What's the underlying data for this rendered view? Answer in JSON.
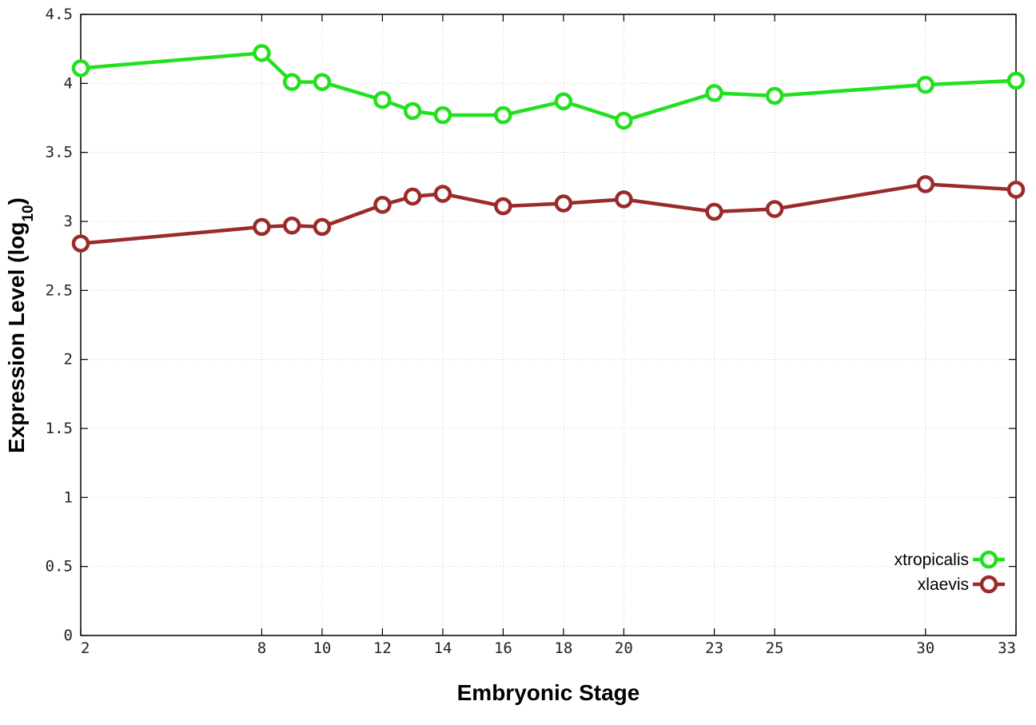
{
  "chart_data": {
    "type": "line",
    "xlabel": "Embryonic Stage",
    "ylabel_main": "Expression Level (log",
    "ylabel_sub": "10",
    "ylabel_close": ")",
    "x": [
      2,
      8,
      9,
      10,
      12,
      13,
      14,
      16,
      18,
      20,
      23,
      25,
      30,
      33
    ],
    "xticks": [
      "2",
      "8",
      "10",
      "12",
      "14",
      "16",
      "18",
      "20",
      "23",
      "25",
      "30",
      "33"
    ],
    "xtick_values": [
      2,
      8,
      10,
      12,
      14,
      16,
      18,
      20,
      23,
      25,
      30,
      33
    ],
    "yticks": [
      "0",
      "0.5",
      "1",
      "1.5",
      "2",
      "2.5",
      "3",
      "3.5",
      "4",
      "4.5"
    ],
    "ytick_values": [
      0,
      0.5,
      1,
      1.5,
      2,
      2.5,
      3,
      3.5,
      4,
      4.5
    ],
    "xlim": [
      2,
      33
    ],
    "ylim": [
      0,
      4.5
    ],
    "grid": true,
    "legend_position": "bottom-right",
    "series": [
      {
        "name": "xtropicalis",
        "color": "#22e01e",
        "values": [
          4.11,
          4.22,
          4.01,
          4.01,
          3.88,
          3.8,
          3.77,
          3.77,
          3.87,
          3.73,
          3.93,
          3.91,
          3.99,
          4.02
        ]
      },
      {
        "name": "xlaevis",
        "color": "#9b2a2a",
        "values": [
          2.84,
          2.96,
          2.97,
          2.96,
          3.12,
          3.18,
          3.2,
          3.11,
          3.13,
          3.16,
          3.07,
          3.09,
          3.27,
          3.23
        ]
      }
    ]
  }
}
